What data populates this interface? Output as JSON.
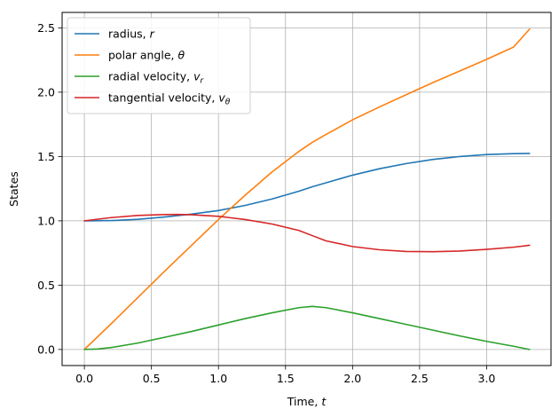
{
  "chart_data": {
    "type": "line",
    "title": "",
    "xlabel": "Time, ",
    "xlabel_var": "t",
    "ylabel": "States",
    "xlim": [
      -0.166,
      3.48
    ],
    "ylim": [
      -0.125,
      2.62
    ],
    "xticks": [
      0.0,
      0.5,
      1.0,
      1.5,
      2.0,
      2.5,
      3.0
    ],
    "xtick_labels": [
      "0.0",
      "0.5",
      "1.0",
      "1.5",
      "2.0",
      "2.5",
      "3.0"
    ],
    "yticks": [
      0.0,
      0.5,
      1.0,
      1.5,
      2.0,
      2.5
    ],
    "ytick_labels": [
      "0.0",
      "0.5",
      "1.0",
      "1.5",
      "2.0",
      "2.5"
    ],
    "grid": true,
    "legend_position": "top-left",
    "series": [
      {
        "name": "radius, ",
        "symbol": "r",
        "symbol_sub": "",
        "color": "#1f77b4",
        "x": [
          0.0,
          0.2,
          0.4,
          0.6,
          0.8,
          1.0,
          1.2,
          1.4,
          1.6,
          1.7,
          1.8,
          2.0,
          2.2,
          2.4,
          2.6,
          2.8,
          3.0,
          3.2,
          3.32
        ],
        "y": [
          1.0,
          1.002,
          1.012,
          1.03,
          1.052,
          1.08,
          1.12,
          1.17,
          1.23,
          1.265,
          1.295,
          1.355,
          1.405,
          1.445,
          1.477,
          1.5,
          1.515,
          1.522,
          1.524
        ]
      },
      {
        "name": "polar angle, ",
        "symbol": "θ",
        "symbol_sub": "",
        "color": "#ff7f0e",
        "x": [
          0.0,
          0.2,
          0.4,
          0.6,
          0.8,
          1.0,
          1.2,
          1.4,
          1.6,
          1.7,
          1.8,
          2.0,
          2.2,
          2.4,
          2.6,
          2.8,
          3.0,
          3.2,
          3.32
        ],
        "y": [
          0.0,
          0.2,
          0.405,
          0.61,
          0.81,
          1.01,
          1.2,
          1.38,
          1.54,
          1.61,
          1.67,
          1.785,
          1.885,
          1.98,
          2.075,
          2.165,
          2.255,
          2.35,
          2.49
        ]
      },
      {
        "name": "radial velocity, ",
        "symbol": "v",
        "symbol_sub": "r",
        "color": "#2ca02c",
        "x": [
          0.0,
          0.1,
          0.2,
          0.4,
          0.6,
          0.8,
          1.0,
          1.2,
          1.4,
          1.6,
          1.7,
          1.8,
          2.0,
          2.2,
          2.4,
          2.6,
          2.8,
          3.0,
          3.2,
          3.32
        ],
        "y": [
          0.0,
          0.004,
          0.015,
          0.05,
          0.095,
          0.14,
          0.19,
          0.24,
          0.285,
          0.325,
          0.335,
          0.325,
          0.285,
          0.24,
          0.195,
          0.15,
          0.105,
          0.063,
          0.025,
          0.0
        ]
      },
      {
        "name": "tangential velocity, ",
        "symbol": "v",
        "symbol_sub": "θ",
        "color": "#d62728",
        "x": [
          0.0,
          0.2,
          0.4,
          0.6,
          0.7,
          0.8,
          1.0,
          1.2,
          1.4,
          1.6,
          1.7,
          1.8,
          2.0,
          2.2,
          2.4,
          2.6,
          2.8,
          3.0,
          3.2,
          3.32
        ],
        "y": [
          1.0,
          1.025,
          1.042,
          1.049,
          1.05,
          1.047,
          1.035,
          1.01,
          0.975,
          0.925,
          0.885,
          0.845,
          0.8,
          0.775,
          0.762,
          0.76,
          0.765,
          0.778,
          0.795,
          0.81
        ]
      }
    ]
  }
}
